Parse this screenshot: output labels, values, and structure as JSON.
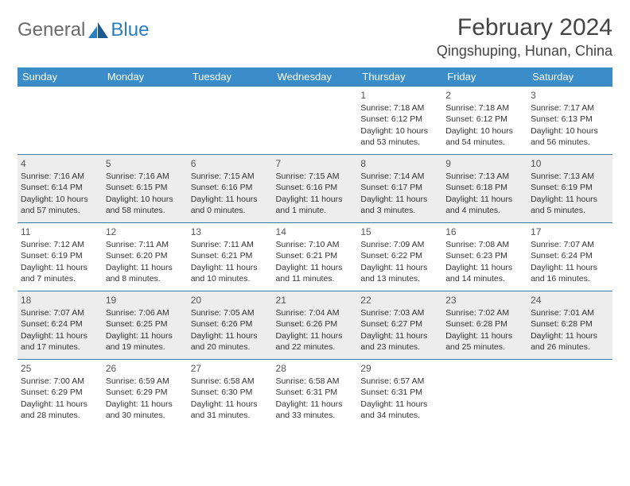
{
  "logo": {
    "text1": "General",
    "text2": "Blue"
  },
  "title": "February 2024",
  "location": "Qingshuping, Hunan, China",
  "weekdays": [
    "Sunday",
    "Monday",
    "Tuesday",
    "Wednesday",
    "Thursday",
    "Friday",
    "Saturday"
  ],
  "colors": {
    "header_bg": "#3a8dc8",
    "header_fg": "#ffffff",
    "row_alt_bg": "#ededed",
    "rule": "#3a7ca8",
    "logo_gray": "#6a6a6a",
    "logo_blue": "#2a7dc0"
  },
  "weeks": [
    [
      {
        "n": "",
        "sr": "",
        "ss": "",
        "dl1": "",
        "dl2": ""
      },
      {
        "n": "",
        "sr": "",
        "ss": "",
        "dl1": "",
        "dl2": ""
      },
      {
        "n": "",
        "sr": "",
        "ss": "",
        "dl1": "",
        "dl2": ""
      },
      {
        "n": "",
        "sr": "",
        "ss": "",
        "dl1": "",
        "dl2": ""
      },
      {
        "n": "1",
        "sr": "Sunrise: 7:18 AM",
        "ss": "Sunset: 6:12 PM",
        "dl1": "Daylight: 10 hours",
        "dl2": "and 53 minutes."
      },
      {
        "n": "2",
        "sr": "Sunrise: 7:18 AM",
        "ss": "Sunset: 6:12 PM",
        "dl1": "Daylight: 10 hours",
        "dl2": "and 54 minutes."
      },
      {
        "n": "3",
        "sr": "Sunrise: 7:17 AM",
        "ss": "Sunset: 6:13 PM",
        "dl1": "Daylight: 10 hours",
        "dl2": "and 56 minutes."
      }
    ],
    [
      {
        "n": "4",
        "sr": "Sunrise: 7:16 AM",
        "ss": "Sunset: 6:14 PM",
        "dl1": "Daylight: 10 hours",
        "dl2": "and 57 minutes."
      },
      {
        "n": "5",
        "sr": "Sunrise: 7:16 AM",
        "ss": "Sunset: 6:15 PM",
        "dl1": "Daylight: 10 hours",
        "dl2": "and 58 minutes."
      },
      {
        "n": "6",
        "sr": "Sunrise: 7:15 AM",
        "ss": "Sunset: 6:16 PM",
        "dl1": "Daylight: 11 hours",
        "dl2": "and 0 minutes."
      },
      {
        "n": "7",
        "sr": "Sunrise: 7:15 AM",
        "ss": "Sunset: 6:16 PM",
        "dl1": "Daylight: 11 hours",
        "dl2": "and 1 minute."
      },
      {
        "n": "8",
        "sr": "Sunrise: 7:14 AM",
        "ss": "Sunset: 6:17 PM",
        "dl1": "Daylight: 11 hours",
        "dl2": "and 3 minutes."
      },
      {
        "n": "9",
        "sr": "Sunrise: 7:13 AM",
        "ss": "Sunset: 6:18 PM",
        "dl1": "Daylight: 11 hours",
        "dl2": "and 4 minutes."
      },
      {
        "n": "10",
        "sr": "Sunrise: 7:13 AM",
        "ss": "Sunset: 6:19 PM",
        "dl1": "Daylight: 11 hours",
        "dl2": "and 5 minutes."
      }
    ],
    [
      {
        "n": "11",
        "sr": "Sunrise: 7:12 AM",
        "ss": "Sunset: 6:19 PM",
        "dl1": "Daylight: 11 hours",
        "dl2": "and 7 minutes."
      },
      {
        "n": "12",
        "sr": "Sunrise: 7:11 AM",
        "ss": "Sunset: 6:20 PM",
        "dl1": "Daylight: 11 hours",
        "dl2": "and 8 minutes."
      },
      {
        "n": "13",
        "sr": "Sunrise: 7:11 AM",
        "ss": "Sunset: 6:21 PM",
        "dl1": "Daylight: 11 hours",
        "dl2": "and 10 minutes."
      },
      {
        "n": "14",
        "sr": "Sunrise: 7:10 AM",
        "ss": "Sunset: 6:21 PM",
        "dl1": "Daylight: 11 hours",
        "dl2": "and 11 minutes."
      },
      {
        "n": "15",
        "sr": "Sunrise: 7:09 AM",
        "ss": "Sunset: 6:22 PM",
        "dl1": "Daylight: 11 hours",
        "dl2": "and 13 minutes."
      },
      {
        "n": "16",
        "sr": "Sunrise: 7:08 AM",
        "ss": "Sunset: 6:23 PM",
        "dl1": "Daylight: 11 hours",
        "dl2": "and 14 minutes."
      },
      {
        "n": "17",
        "sr": "Sunrise: 7:07 AM",
        "ss": "Sunset: 6:24 PM",
        "dl1": "Daylight: 11 hours",
        "dl2": "and 16 minutes."
      }
    ],
    [
      {
        "n": "18",
        "sr": "Sunrise: 7:07 AM",
        "ss": "Sunset: 6:24 PM",
        "dl1": "Daylight: 11 hours",
        "dl2": "and 17 minutes."
      },
      {
        "n": "19",
        "sr": "Sunrise: 7:06 AM",
        "ss": "Sunset: 6:25 PM",
        "dl1": "Daylight: 11 hours",
        "dl2": "and 19 minutes."
      },
      {
        "n": "20",
        "sr": "Sunrise: 7:05 AM",
        "ss": "Sunset: 6:26 PM",
        "dl1": "Daylight: 11 hours",
        "dl2": "and 20 minutes."
      },
      {
        "n": "21",
        "sr": "Sunrise: 7:04 AM",
        "ss": "Sunset: 6:26 PM",
        "dl1": "Daylight: 11 hours",
        "dl2": "and 22 minutes."
      },
      {
        "n": "22",
        "sr": "Sunrise: 7:03 AM",
        "ss": "Sunset: 6:27 PM",
        "dl1": "Daylight: 11 hours",
        "dl2": "and 23 minutes."
      },
      {
        "n": "23",
        "sr": "Sunrise: 7:02 AM",
        "ss": "Sunset: 6:28 PM",
        "dl1": "Daylight: 11 hours",
        "dl2": "and 25 minutes."
      },
      {
        "n": "24",
        "sr": "Sunrise: 7:01 AM",
        "ss": "Sunset: 6:28 PM",
        "dl1": "Daylight: 11 hours",
        "dl2": "and 26 minutes."
      }
    ],
    [
      {
        "n": "25",
        "sr": "Sunrise: 7:00 AM",
        "ss": "Sunset: 6:29 PM",
        "dl1": "Daylight: 11 hours",
        "dl2": "and 28 minutes."
      },
      {
        "n": "26",
        "sr": "Sunrise: 6:59 AM",
        "ss": "Sunset: 6:29 PM",
        "dl1": "Daylight: 11 hours",
        "dl2": "and 30 minutes."
      },
      {
        "n": "27",
        "sr": "Sunrise: 6:58 AM",
        "ss": "Sunset: 6:30 PM",
        "dl1": "Daylight: 11 hours",
        "dl2": "and 31 minutes."
      },
      {
        "n": "28",
        "sr": "Sunrise: 6:58 AM",
        "ss": "Sunset: 6:31 PM",
        "dl1": "Daylight: 11 hours",
        "dl2": "and 33 minutes."
      },
      {
        "n": "29",
        "sr": "Sunrise: 6:57 AM",
        "ss": "Sunset: 6:31 PM",
        "dl1": "Daylight: 11 hours",
        "dl2": "and 34 minutes."
      },
      {
        "n": "",
        "sr": "",
        "ss": "",
        "dl1": "",
        "dl2": ""
      },
      {
        "n": "",
        "sr": "",
        "ss": "",
        "dl1": "",
        "dl2": ""
      }
    ]
  ]
}
